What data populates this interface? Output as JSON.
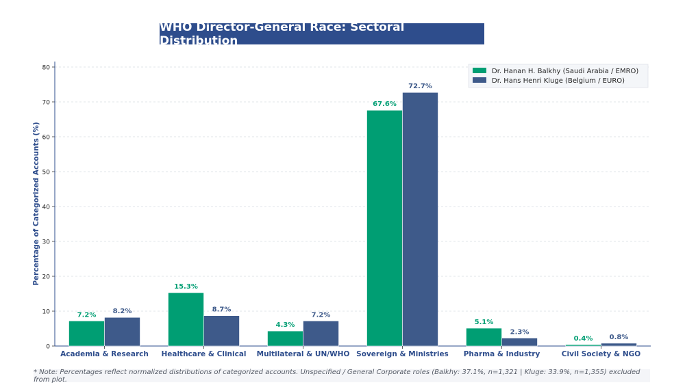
{
  "colors": {
    "balkhy": "#009e73",
    "kluge": "#3e5a8a",
    "axis_text": "#2e4d8c",
    "grid": "#d8dce3"
  },
  "chart_data": {
    "type": "bar",
    "title": "WHO Director-General Race: Sectoral Distribution",
    "xlabel": "",
    "ylabel": "Percentage of Categorized Accounts (%)",
    "ylim": [
      0,
      80
    ],
    "yticks": [
      0,
      10,
      20,
      30,
      40,
      50,
      60,
      70,
      80
    ],
    "grid": true,
    "legend_position": "top-right",
    "categories": [
      "Academia & Research",
      "Healthcare & Clinical",
      "Multilateral & UN/WHO",
      "Sovereign & Ministries",
      "Pharma & Industry",
      "Civil Society & NGO"
    ],
    "series": [
      {
        "name": "Dr. Hanan H. Balkhy (Saudi Arabia / EMRO)",
        "values": [
          7.2,
          15.3,
          4.3,
          67.6,
          5.1,
          0.4
        ],
        "labels": [
          "7.2%",
          "15.3%",
          "4.3%",
          "67.6%",
          "5.1%",
          "0.4%"
        ]
      },
      {
        "name": "Dr. Hans Henri Kluge (Belgium / EURO)",
        "values": [
          8.2,
          8.7,
          7.2,
          72.7,
          2.3,
          0.8
        ],
        "labels": [
          "8.2%",
          "8.7%",
          "7.2%",
          "72.7%",
          "2.3%",
          "0.8%"
        ]
      }
    ],
    "note": "* Note: Percentages reflect normalized distributions of categorized accounts. Unspecified / General Corporate roles (Balkhy: 37.1%, n=1,321 | Kluge: 33.9%, n=1,355) excluded from plot."
  }
}
